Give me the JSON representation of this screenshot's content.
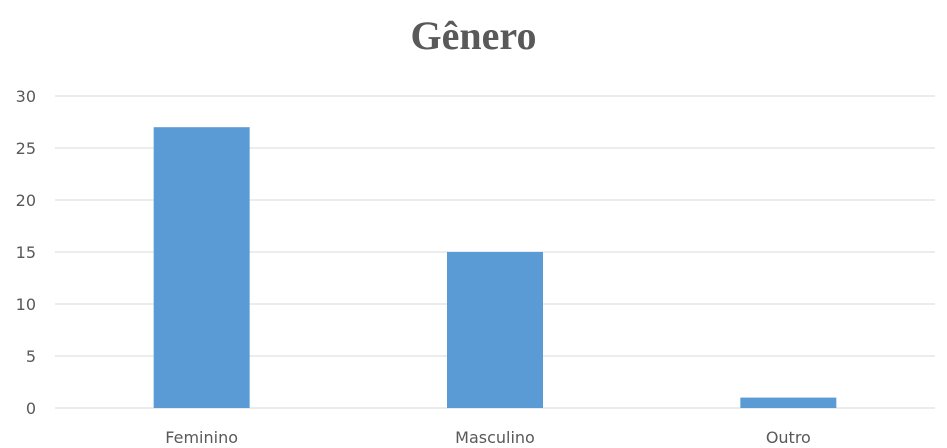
{
  "chart_data": {
    "type": "bar",
    "title": "Gênero",
    "categories": [
      "Feminino",
      "Masculino",
      "Outro"
    ],
    "values": [
      27,
      15,
      1
    ],
    "ylim": [
      0,
      30
    ],
    "yticks": [
      0,
      5,
      10,
      15,
      20,
      25,
      30
    ],
    "grid": true,
    "legend": "none",
    "colors": {
      "bar": "#5B9BD5",
      "grid": "#D9D9D9",
      "text": "#595959"
    }
  }
}
